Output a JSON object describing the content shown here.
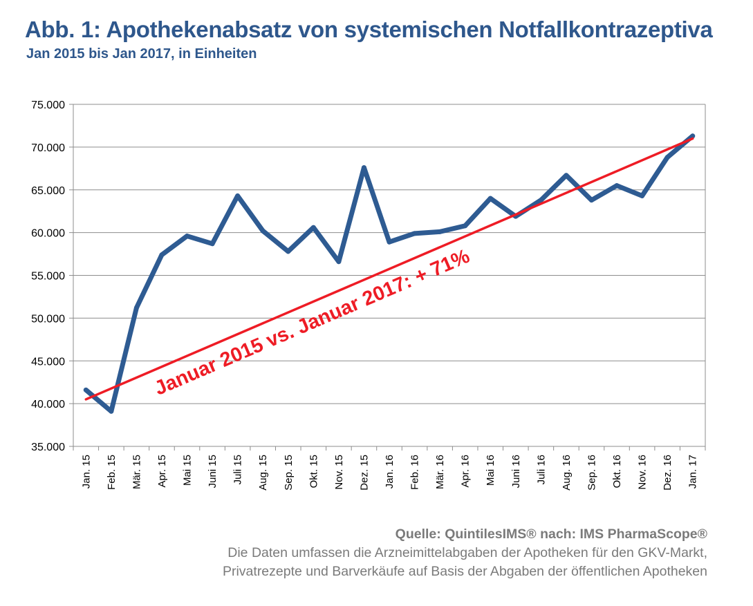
{
  "header": {
    "title": "Abb. 1: Apothekenabsatz von systemischen Notfallkontrazeptiva",
    "subtitle": "Jan 2015 bis Jan 2017, in Einheiten"
  },
  "chart_data": {
    "type": "line",
    "title": "Abb. 1: Apothekenabsatz von systemischen Notfallkontrazeptiva",
    "subtitle": "Jan 2015 bis Jan 2017, in Einheiten",
    "categories": [
      "Jan. 15",
      "Feb. 15",
      "Mär. 15",
      "Apr. 15",
      "Mai 15",
      "Juni 15",
      "Juli 15",
      "Aug. 15",
      "Sep. 15",
      "Okt. 15",
      "Nov. 15",
      "Dez. 15",
      "Jan. 16",
      "Feb. 16",
      "Mär. 16",
      "Apr. 16",
      "Mai 16",
      "Juni 16",
      "Juli 16",
      "Aug. 16",
      "Sep. 16",
      "Okt. 16",
      "Nov. 16",
      "Dez. 16",
      "Jan. 17"
    ],
    "series": [
      {
        "values": [
          41600,
          39100,
          51200,
          57400,
          59600,
          58700,
          64300,
          60200,
          57800,
          60600,
          56600,
          67600,
          58900,
          59900,
          60100,
          60800,
          64000,
          61900,
          63800,
          66700,
          63800,
          65500,
          64300,
          68800,
          71300
        ],
        "color": "#2e5b92"
      }
    ],
    "trendline": {
      "start": 40500,
      "end": 71000,
      "color": "#ee1c25"
    },
    "annotation": "Januar 2015 vs. Januar 2017: + 71%",
    "ylim": [
      35000,
      75000
    ],
    "yticks": [
      "35.000",
      "40.000",
      "45.000",
      "50.000",
      "55.000",
      "60.000",
      "65.000",
      "70.000",
      "75.000"
    ],
    "ytick_values": [
      35000,
      40000,
      45000,
      50000,
      55000,
      60000,
      65000,
      70000,
      75000
    ],
    "grid": true,
    "legend": "none"
  },
  "footer": {
    "source": "Quelle: QuintilesIMS® nach: IMS PharmaScope®",
    "note_line1": "Die Daten umfassen die Arzneimittelabgaben der Apotheken für den GKV-Markt,",
    "note_line2": "Privatrezepte und Barverkäufe auf Basis der Abgaben der öffentlichen Apotheken"
  }
}
